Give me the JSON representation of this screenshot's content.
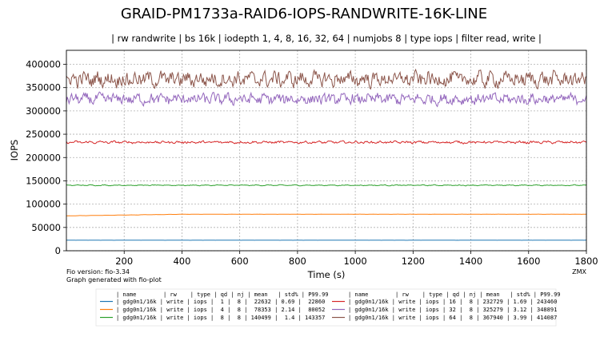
{
  "chart_data": {
    "type": "line",
    "title": "GRAID-PM1733a-RAID6-IOPS-RANDWRITE-16K-LINE",
    "subtitle": "| rw randwrite | bs 16k | iodepth 1, 4, 8, 16, 32, 64 | numjobs 8 | type iops | filter read, write |",
    "xlabel": "Time (s)",
    "ylabel": "IOPS",
    "xlim": [
      0,
      1800
    ],
    "ylim": [
      0,
      430000
    ],
    "xticks": [
      "200",
      "400",
      "600",
      "800",
      "1000",
      "1200",
      "1400",
      "1600",
      "1800"
    ],
    "xtick_values": [
      200,
      400,
      600,
      800,
      1000,
      1200,
      1400,
      1600,
      1800
    ],
    "yticks": [
      "0",
      "50000",
      "100000",
      "150000",
      "200000",
      "250000",
      "300000",
      "350000",
      "400000"
    ],
    "ytick_values": [
      0,
      50000,
      100000,
      150000,
      200000,
      250000,
      300000,
      350000,
      400000
    ],
    "grid": true,
    "legend_placement": "bottom-center",
    "legend_header": "| name        | rw    | type | qd | nj | mean   | std% | P99.99",
    "series": [
      {
        "legend": "| gdg0n1/16k | write | iops |  1 |  8 |  22632 | 0.69 |  22860",
        "color": "#1f77b4",
        "mean": 22632,
        "amp": 300,
        "noise": 0.25
      },
      {
        "legend": "| gdg0n1/16k | write | iops |  4 |  8 |  78353 | 2.14 |  80052",
        "color": "#ff7f0e",
        "mean": 78353,
        "amp": 500,
        "noise": 0.25,
        "ramp": true
      },
      {
        "legend": "| gdg0n1/16k | write | iops |  8 |  8 | 140499 |  1.4 | 143357",
        "color": "#2ca02c",
        "mean": 140499,
        "amp": 1600,
        "noise": 0.6
      },
      {
        "legend": "| gdg0n1/16k | write | iops | 16 |  8 | 232729 | 1.69 | 243460",
        "color": "#d62728",
        "mean": 232729,
        "amp": 3000,
        "noise": 1.0
      },
      {
        "legend": "| gdg0n1/16k | write | iops | 32 |  8 | 325279 | 3.12 | 348891",
        "color": "#9467bd",
        "mean": 325279,
        "amp": 9500,
        "noise": 1.6
      },
      {
        "legend": "| gdg0n1/16k | write | iops | 64 |  8 | 367940 | 3.99 | 414087",
        "color": "#8c564b",
        "mean": 367940,
        "amp": 13000,
        "noise": 1.6
      }
    ]
  },
  "footer": {
    "version": "Fio version: fio-3.34",
    "generator": "Graph generated with fio-plot",
    "brand": "ZMX"
  }
}
